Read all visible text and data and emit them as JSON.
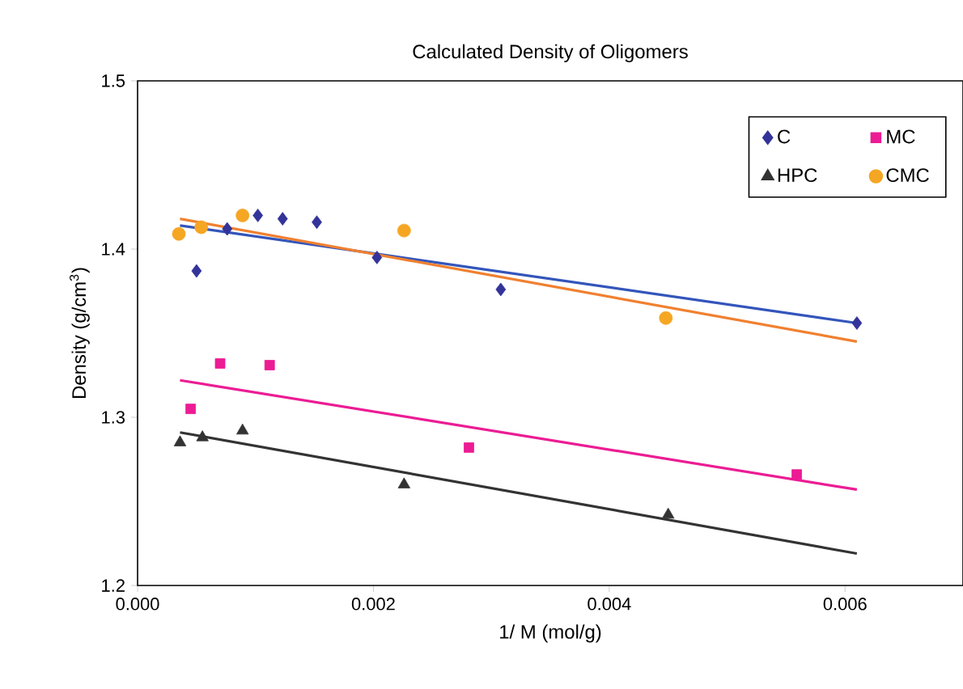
{
  "chart_data": {
    "type": "scatter",
    "title": "Calculated Density of Oligomers",
    "xlabel": "1/ M (mol/g)",
    "ylabel": "Density (g/cm$^{3}$)",
    "xlim": [
      0,
      0.007
    ],
    "ylim": [
      1.2,
      1.5
    ],
    "xticks": [
      {
        "value": 0,
        "label": "0.000"
      },
      {
        "value": 0.002,
        "label": "0.002"
      },
      {
        "value": 0.004,
        "label": "0.004"
      },
      {
        "value": 0.006,
        "label": "0.006"
      }
    ],
    "yticks": [
      {
        "value": 1.2,
        "label": "1.2"
      },
      {
        "value": 1.3,
        "label": "1.3"
      },
      {
        "value": 1.4,
        "label": "1.4"
      },
      {
        "value": 1.5,
        "label": "1.5"
      }
    ],
    "legend": "top right",
    "series": [
      {
        "name": "C",
        "marker": "diamond",
        "color": "#333399",
        "x": [
          0.0005,
          0.00076,
          0.00102,
          0.00123,
          0.00152,
          0.00203,
          0.00308,
          0.0061
        ],
        "values": [
          1.387,
          1.412,
          1.42,
          1.418,
          1.416,
          1.395,
          1.376,
          1.356
        ]
      },
      {
        "name": "MC",
        "marker": "square",
        "color": "#ec1c94",
        "x": [
          0.00045,
          0.0007,
          0.00112,
          0.00281,
          0.00559
        ],
        "values": [
          1.305,
          1.332,
          1.331,
          1.282,
          1.266
        ]
      },
      {
        "name": "HPC",
        "marker": "triangle",
        "color": "#333333",
        "x": [
          0.00036,
          0.00055,
          0.00089,
          0.00226,
          0.0045
        ],
        "values": [
          1.285,
          1.288,
          1.292,
          1.26,
          1.242
        ]
      },
      {
        "name": "CMC",
        "marker": "circle",
        "color": "#f5a623",
        "x": [
          0.00035,
          0.00054,
          0.00089,
          0.00226,
          0.00448
        ],
        "values": [
          1.409,
          1.413,
          1.42,
          1.411,
          1.359
        ]
      },
      {
        "type": "line",
        "marker": "none",
        "color": "#3355bb",
        "x": [
          0.00036,
          0.0061
        ],
        "values": [
          1.414,
          1.356
        ]
      },
      {
        "type": "line",
        "marker": "none",
        "color": "#ec1c94",
        "x": [
          0.00036,
          0.0061
        ],
        "values": [
          1.322,
          1.257
        ]
      },
      {
        "type": "line",
        "marker": "none",
        "color": "#333333",
        "x": [
          0.00036,
          0.0061
        ],
        "values": [
          1.291,
          1.219
        ]
      },
      {
        "type": "line",
        "marker": "none",
        "color": "#f08030",
        "x": [
          0.00036,
          0.0061
        ],
        "values": [
          1.418,
          1.345
        ]
      }
    ]
  }
}
